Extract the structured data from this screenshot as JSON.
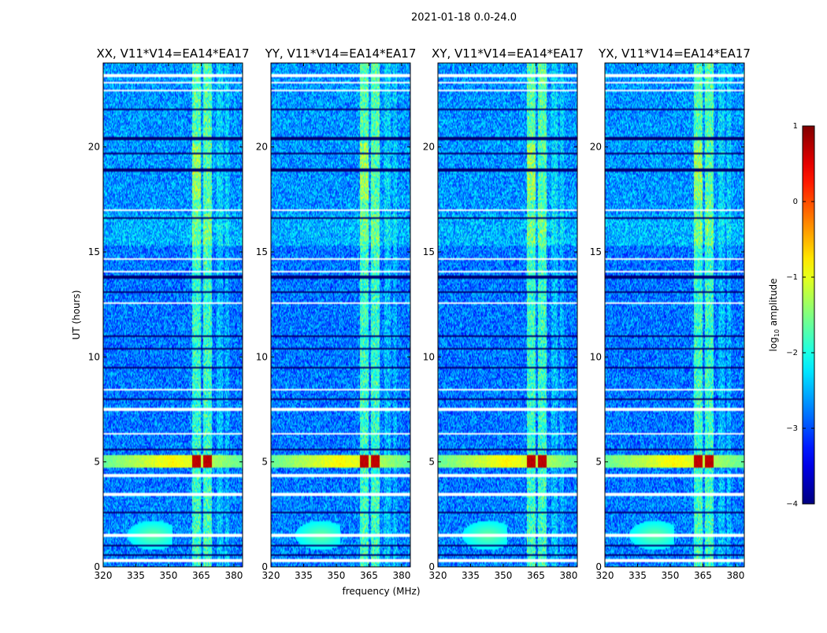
{
  "figure": {
    "suptitle": "2021-01-18 0.0-24.0",
    "xlabel": "frequency (MHz)",
    "ylabel": "UT (hours)",
    "colorbar": {
      "label_prefix": "log",
      "label_sub": "10",
      "label_suffix": " amplitude",
      "ticks": [
        1,
        0,
        -1,
        -2,
        -3,
        -4
      ],
      "tick_labels": [
        "1",
        "0",
        "−1",
        "−2",
        "−3",
        "−4"
      ],
      "min": -4,
      "max": 1,
      "colormap": "jet"
    }
  },
  "chart_data": {
    "type": "heatmap",
    "x_ticks": [
      320,
      335,
      350,
      365,
      380
    ],
    "x_tick_labels": [
      "320",
      "335",
      "350",
      "365",
      "380"
    ],
    "xlim": [
      320,
      384
    ],
    "y_ticks": [
      0,
      5,
      10,
      15,
      20
    ],
    "y_tick_labels": [
      "0",
      "5",
      "10",
      "15",
      "20"
    ],
    "ylim": [
      0,
      24
    ],
    "panels": [
      {
        "title": "XX, V11*V14=EA14*EA17",
        "base": -2.8,
        "noise": 0.55
      },
      {
        "title": "YY, V11*V14=EA14*EA17",
        "base": -2.8,
        "noise": 0.55
      },
      {
        "title": "XY, V11*V14=EA14*EA17",
        "base": -2.8,
        "noise": 0.55
      },
      {
        "title": "YX, V11*V14=EA14*EA17",
        "base": -2.8,
        "noise": 0.55
      }
    ],
    "rfi_channels_mhz": [
      [
        361,
        365
      ],
      [
        366,
        370
      ]
    ],
    "strong_event": {
      "ut": [
        4.7,
        5.3
      ],
      "level": 0.6,
      "band_level": -1.0
    },
    "blank_times_ut": [
      0.3,
      1.5,
      3.45,
      4.35,
      6.35,
      7.5,
      8.45,
      12.55,
      14.05,
      14.65,
      17.0,
      22.7,
      23.05,
      23.4
    ],
    "flag_times_ut": [
      0.55,
      1.0,
      2.6,
      5.6,
      8.0,
      9.5,
      10.4,
      11.0,
      13.1,
      13.8,
      16.6,
      18.9,
      19.7,
      20.4,
      21.8
    ]
  }
}
